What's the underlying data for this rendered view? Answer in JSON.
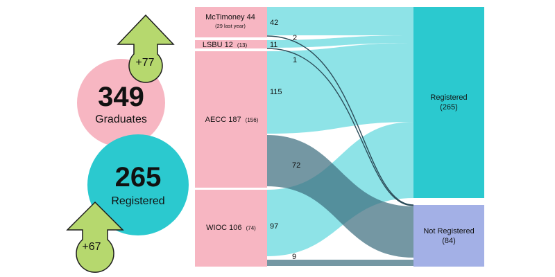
{
  "summary": {
    "graduates_number": "349",
    "graduates_label": "Graduates",
    "registered_number": "265",
    "registered_label": "Registered",
    "graduates_change": "+77",
    "registered_change": "+67"
  },
  "sources": [
    {
      "name": "McTimoney 44",
      "sub": "(29 last year)"
    },
    {
      "name": "LSBU 12",
      "sub": "(13)"
    },
    {
      "name": "AECC 187",
      "sub": "(156)"
    },
    {
      "name": "WIOC 106",
      "sub": "(74)"
    }
  ],
  "targets": [
    {
      "name": "Registered",
      "sub": "(265)"
    },
    {
      "name": "Not Registered",
      "sub": "(84)"
    }
  ],
  "flow_values": {
    "mctimoney_registered": "42",
    "mctimoney_not": "2",
    "lsbu_registered": "11",
    "lsbu_not": "1",
    "aecc_registered": "115",
    "aecc_not": "72",
    "wioc_registered": "97",
    "wioc_not": "9"
  },
  "colors": {
    "pink": "#f7b6c2",
    "teal": "#2bc9cf",
    "light_teal": "#8ee3e7",
    "dark_slate": "#3f6f80",
    "lavender": "#a3b0e6",
    "arrow_green": "#b6d86e"
  }
}
